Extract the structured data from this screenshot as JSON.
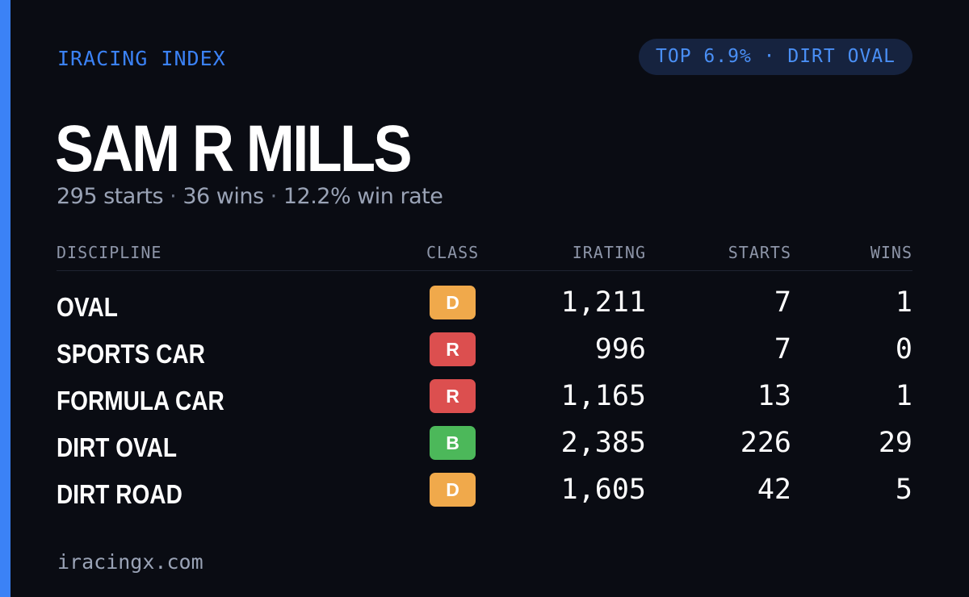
{
  "brand": "IRACING INDEX",
  "badge": "TOP 6.9% · DIRT OVAL",
  "driver": {
    "name": "SAM R MILLS",
    "starts_text": "295 starts",
    "wins_text": "36 wins",
    "winrate_text": "12.2% win rate",
    "separator": "·"
  },
  "table": {
    "headers": {
      "discipline": "DISCIPLINE",
      "class": "CLASS",
      "irating": "IRATING",
      "starts": "STARTS",
      "wins": "WINS"
    },
    "rows": [
      {
        "discipline": "OVAL",
        "class": "D",
        "class_color": "#f0a94b",
        "irating": "1,211",
        "starts": "7",
        "wins": "1"
      },
      {
        "discipline": "SPORTS CAR",
        "class": "R",
        "class_color": "#dc4f4f",
        "irating": "996",
        "starts": "7",
        "wins": "0"
      },
      {
        "discipline": "FORMULA CAR",
        "class": "R",
        "class_color": "#dc4f4f",
        "irating": "1,165",
        "starts": "13",
        "wins": "1"
      },
      {
        "discipline": "DIRT OVAL",
        "class": "B",
        "class_color": "#4cb85a",
        "irating": "2,385",
        "starts": "226",
        "wins": "29"
      },
      {
        "discipline": "DIRT ROAD",
        "class": "D",
        "class_color": "#f0a94b",
        "irating": "1,605",
        "starts": "42",
        "wins": "5"
      }
    ]
  },
  "footer": "iracingx.com",
  "colors": {
    "accent": "#3b82f6",
    "background": "#0a0c13",
    "pill_background": "#16233f",
    "muted_text": "#9aa3b6"
  }
}
